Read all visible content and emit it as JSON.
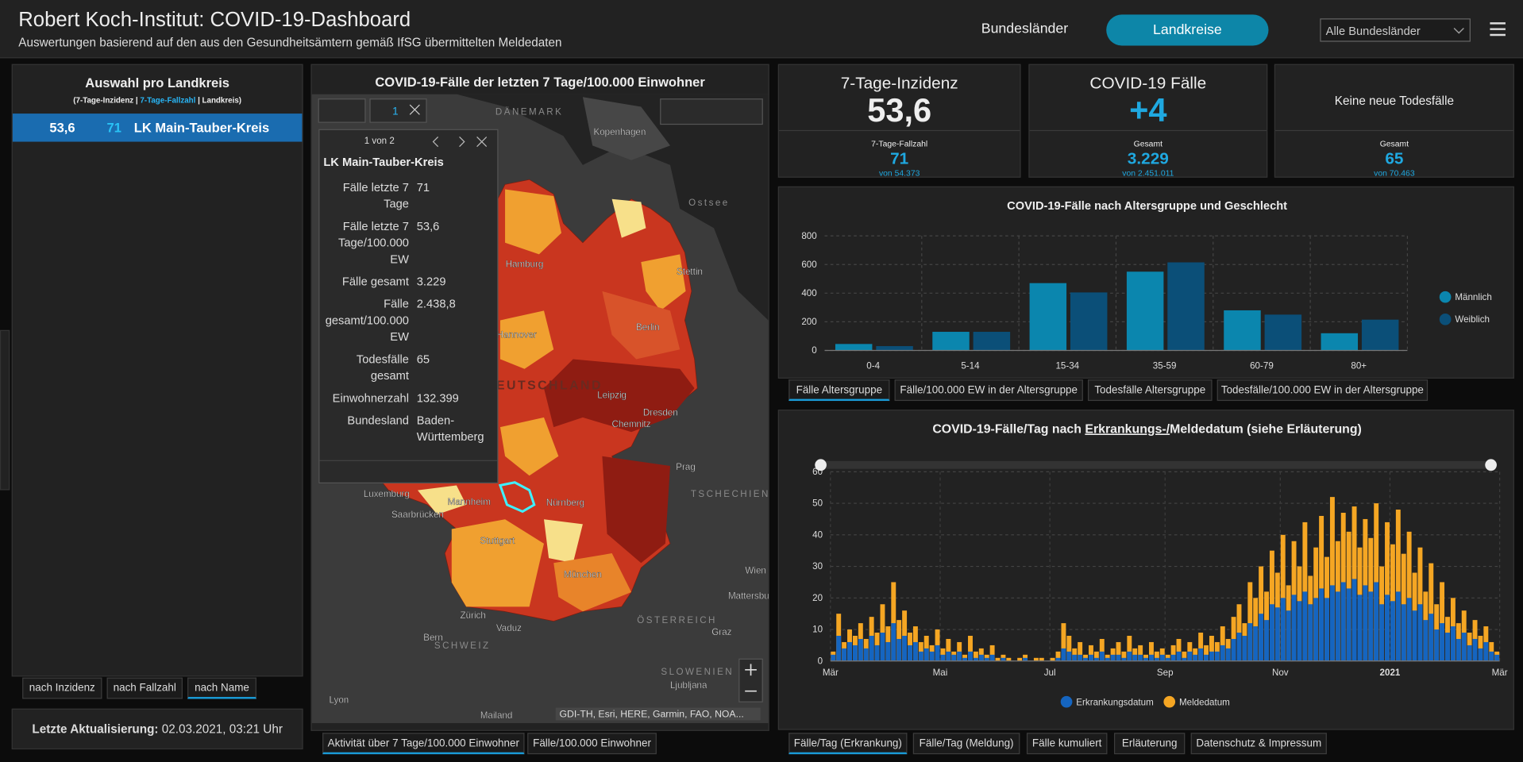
{
  "header": {
    "title": "Robert Koch-Institut: COVID-19-Dashboard",
    "subtitle": "Auswertungen basierend auf den aus den Gesundheitsämtern gemäß IfSG übermittelten Meldedaten",
    "nav": [
      "Bundesländer",
      "Landkreise"
    ],
    "dropdown": "Alle Bundesländer"
  },
  "list_panel": {
    "title": "Auswahl pro Landkreis",
    "legend": [
      "(7-Tage-Inzidenz | ",
      "7-Tage-Fallzahl",
      " | Landkreis)"
    ],
    "rows": [
      [
        "53,6",
        "71",
        "LK Main-Tauber-Kreis"
      ]
    ],
    "sort_buttons": [
      "nach Inzidenz",
      "nach Fallzahl",
      "nach Name"
    ]
  },
  "update": {
    "label": "Letzte Aktualisierung:",
    "value": "02.03.2021, 03:21 Uhr"
  },
  "map_panel": {
    "title": "COVID-19-Fälle der letzten 7 Tage/100.000 Einwohner",
    "toolbar_count": "1",
    "popup": {
      "pager": "1 von 2",
      "title": "LK Main-Tauber-Kreis",
      "fields": [
        [
          "Fälle letzte 7 Tage",
          "71"
        ],
        [
          "Fälle letzte 7 Tage/100.000 EW",
          "53,6"
        ],
        [
          "Fälle gesamt",
          "3.229"
        ],
        [
          "Fälle gesamt/100.000 EW",
          "2.438,8"
        ],
        [
          "Todesfälle gesamt",
          "65"
        ],
        [
          "Einwohnerzahl",
          "132.399"
        ],
        [
          "Bundesland",
          "Baden-Württemberg"
        ]
      ]
    },
    "labels": [
      "DÄNEMARK",
      "Kopenhagen",
      "Ostsee",
      "Hamburg",
      "Stettin",
      "Hannover",
      "Berlin",
      "DEUTSCHLAND",
      "Leipzig",
      "Dresden",
      "Chemnitz",
      "Prag",
      "TSCHECHIEN",
      "Nürnberg",
      "Mannheim",
      "Saarbrücken",
      "Luxemburg",
      "Stuttgart",
      "München",
      "Wien",
      "Mattersburg",
      "ÖSTERREICH",
      "Graz",
      "Zürich",
      "Vaduz",
      "Bern",
      "SCHWEIZ",
      "SLOWENIEN",
      "Ljubljana",
      "Lyon",
      "Mailand"
    ],
    "attribution": "GDI-TH, Esri, HERE, Garmin, FAO, NOA...",
    "tabs": [
      "Aktivität über 7 Tage/100.000 Einwohner",
      "Fälle/100.000 Einwohner"
    ]
  },
  "kpis": [
    {
      "title": "7-Tage-Inzidenz",
      "value": "53,6",
      "sub_label": "7-Tage-Fallzahl",
      "sub_value": "71",
      "sub_total": "von 54.373"
    },
    {
      "title": "COVID-19 Fälle",
      "value": "+4",
      "sub_label": "Gesamt",
      "sub_value": "3.229",
      "sub_total": "von 2.451.011"
    },
    {
      "title": "Keine neue Todesfälle",
      "sub_label": "Gesamt",
      "sub_value": "65",
      "sub_total": "von 70.463"
    }
  ],
  "age_chart": {
    "type": "bar",
    "title": "COVID-19-Fälle nach Altersgruppe und Geschlecht",
    "categories": [
      "0-4",
      "5-14",
      "15-34",
      "35-59",
      "60-79",
      "80+"
    ],
    "series": [
      {
        "name": "Männlich",
        "color": "#0b86ae",
        "values": [
          45,
          130,
          470,
          550,
          280,
          120
        ]
      },
      {
        "name": "Weiblich",
        "color": "#0b4f78",
        "values": [
          30,
          130,
          405,
          615,
          250,
          215
        ]
      }
    ],
    "ylim": [
      0,
      800
    ],
    "yticks": [
      0,
      200,
      400,
      600,
      800
    ],
    "grid": true,
    "legend": "right"
  },
  "age_tabs": [
    "Fälle Altersgruppe",
    "Fälle/100.000 EW in der Altersgruppe",
    "Todesfälle Altersgruppe",
    "Todesfälle/100.000 EW in der Altersgruppe"
  ],
  "daily_chart": {
    "type": "bar",
    "title_parts": [
      "COVID-19-Fälle/Tag nach ",
      "Erkrankungs-/",
      "Meldedatum (siehe Erläuterung)"
    ],
    "series": [
      {
        "name": "Erkrankungsdatum",
        "color": "#1565c0",
        "values": [
          2,
          8,
          4,
          6,
          5,
          7,
          4,
          8,
          5,
          9,
          6,
          12,
          7,
          8,
          5,
          6,
          3,
          4,
          3,
          5,
          2,
          3,
          2,
          3,
          1,
          3,
          1,
          2,
          1,
          2,
          0,
          1,
          0,
          0,
          0,
          1,
          0,
          0,
          0,
          0,
          0,
          1,
          4,
          3,
          2,
          2,
          1,
          2,
          1,
          3,
          1,
          2,
          2,
          1,
          3,
          2,
          2,
          1,
          2,
          1,
          2,
          1,
          2,
          3,
          1,
          3,
          2,
          4,
          2,
          3,
          3,
          5,
          4,
          7,
          9,
          8,
          12,
          11,
          15,
          13,
          18,
          17,
          20,
          16,
          21,
          19,
          22,
          18,
          20,
          23,
          20,
          24,
          22,
          25,
          23,
          26,
          21,
          24,
          22,
          25,
          18,
          21,
          19,
          22,
          18,
          20,
          16,
          18,
          13,
          15,
          10,
          12,
          9,
          11,
          7,
          9,
          5,
          7,
          4,
          6,
          3,
          2
        ]
      },
      {
        "name": "Meldedatum",
        "color": "#f5a623",
        "values": [
          3,
          15,
          6,
          10,
          8,
          12,
          7,
          14,
          9,
          18,
          11,
          25,
          13,
          16,
          9,
          11,
          6,
          8,
          5,
          10,
          4,
          7,
          3,
          6,
          2,
          8,
          3,
          4,
          2,
          5,
          1,
          2,
          1,
          0,
          1,
          2,
          0,
          1,
          1,
          0,
          1,
          3,
          12,
          8,
          4,
          6,
          2,
          5,
          3,
          7,
          2,
          4,
          6,
          3,
          8,
          4,
          5,
          2,
          6,
          3,
          4,
          2,
          5,
          7,
          3,
          6,
          4,
          9,
          5,
          8,
          6,
          11,
          7,
          14,
          18,
          12,
          25,
          20,
          30,
          22,
          35,
          28,
          40,
          24,
          38,
          30,
          44,
          27,
          36,
          46,
          33,
          52,
          38,
          47,
          41,
          49,
          36,
          45,
          39,
          50,
          30,
          44,
          37,
          48,
          34,
          41,
          28,
          36,
          22,
          31,
          18,
          25,
          14,
          20,
          12,
          16,
          9,
          13,
          8,
          11,
          6,
          3
        ]
      }
    ],
    "xlim": [
      0,
      122
    ],
    "xticks": [
      {
        "value": 0,
        "label": "Mär"
      },
      {
        "value": 20,
        "label": "Mai"
      },
      {
        "value": 40,
        "label": "Jul"
      },
      {
        "value": 61,
        "label": "Sep"
      },
      {
        "value": 82,
        "label": "Nov"
      },
      {
        "value": 102,
        "label": "2021"
      },
      {
        "value": 122,
        "label": "Mär"
      }
    ],
    "ylim": [
      0,
      60
    ],
    "yticks": [
      0,
      10,
      20,
      30,
      40,
      50,
      60
    ],
    "grid": true,
    "legend": "bottom"
  },
  "daily_tabs": [
    "Fälle/Tag (Erkrankung)",
    "Fälle/Tag (Meldung)",
    "Fälle kumuliert",
    "Erläuterung",
    "Datenschutz & Impressum"
  ]
}
